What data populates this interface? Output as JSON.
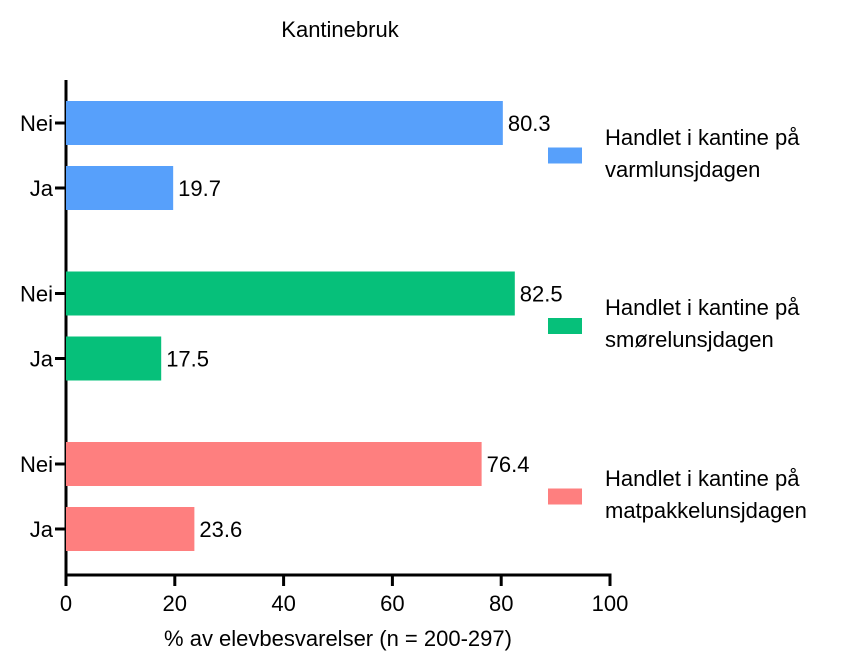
{
  "chart_data": {
    "type": "bar",
    "orientation": "horizontal",
    "title": "Kantinebruk",
    "x_label": "% av elevbesvarelser (n = 200-297)",
    "categories": [
      "Nei",
      "Ja"
    ],
    "series": [
      {
        "name": "Handlet i kantine på varmlunsjdagen",
        "color": "#57a0fb",
        "values": [
          80.3,
          19.7
        ]
      },
      {
        "name": "Handlet i kantine på smørelunsjdagen",
        "color": "#06c07a",
        "values": [
          82.5,
          17.5
        ]
      },
      {
        "name": "Handlet i kantine på matpakkelunsjdagen",
        "color": "#fe7f7f",
        "values": [
          76.4,
          23.6
        ]
      }
    ],
    "xlim": [
      0,
      100
    ],
    "xticks": [
      0,
      20,
      40,
      60,
      80,
      100
    ],
    "grid": false,
    "legend": "right"
  }
}
